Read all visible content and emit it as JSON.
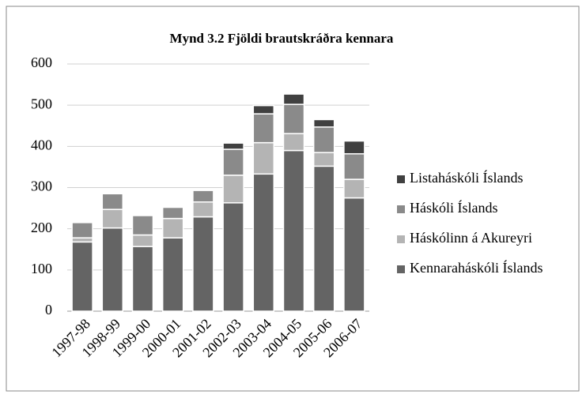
{
  "chart_data": {
    "type": "stacked_bar",
    "title": "Mynd 3.2 Fjöldi brautskráðra kennara",
    "categories": [
      "1997-98",
      "1998-99",
      "1999-00",
      "2000-01",
      "2001-02",
      "2002-03",
      "2003-04",
      "2004-05",
      "2005-06",
      "2006-07"
    ],
    "series": [
      {
        "name": "Kennaraháskóli Íslands",
        "color": "#646464",
        "values": [
          168,
          202,
          157,
          178,
          229,
          263,
          333,
          390,
          352,
          275
        ]
      },
      {
        "name": "Háskólinn á Akureyri",
        "color": "#b4b4b4",
        "values": [
          10,
          45,
          28,
          47,
          36,
          67,
          76,
          41,
          33,
          45
        ]
      },
      {
        "name": "Háskóli Íslands",
        "color": "#8a8a8a",
        "values": [
          37,
          38,
          47,
          27,
          28,
          63,
          70,
          71,
          62,
          62
        ]
      },
      {
        "name": "Listaháskóli Íslands",
        "color": "#404040",
        "values": [
          0,
          0,
          0,
          0,
          0,
          15,
          20,
          25,
          18,
          31
        ]
      }
    ],
    "ylim": [
      0,
      600
    ],
    "yticks": [
      0,
      100,
      200,
      300,
      400,
      500,
      600
    ],
    "grid": true,
    "legend": "right"
  }
}
